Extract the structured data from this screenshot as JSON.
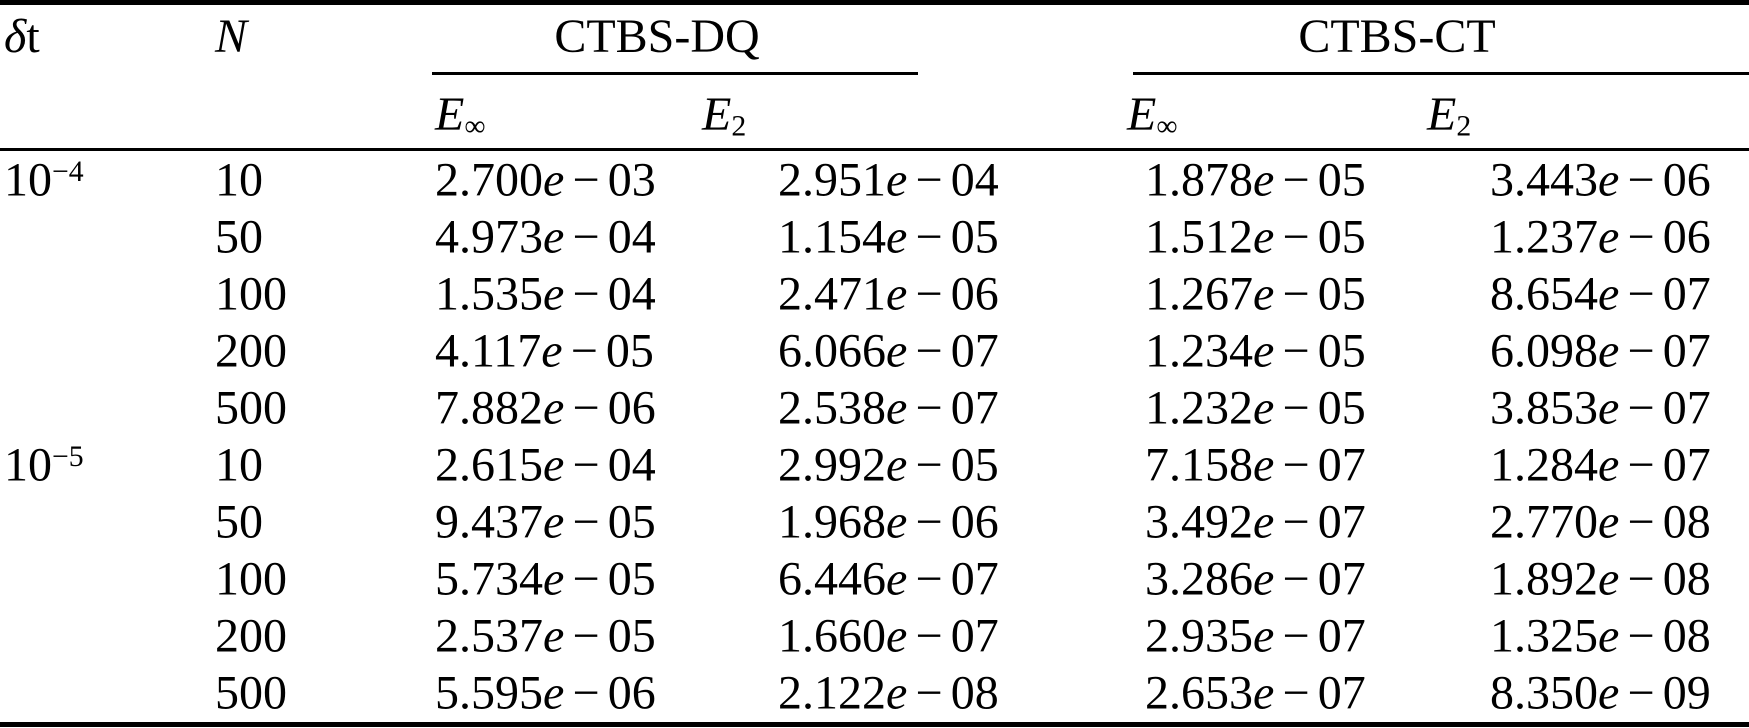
{
  "headers": {
    "dt_delta": "δ",
    "dt_t": "t",
    "n_label": "N",
    "groups": [
      {
        "label": "CTBS-DQ"
      },
      {
        "label": "CTBS-CT"
      }
    ],
    "subcols": [
      {
        "base": "E",
        "sub": "∞"
      },
      {
        "base": "E",
        "sub": "2"
      },
      {
        "base": "E",
        "sub": "∞"
      },
      {
        "base": "E",
        "sub": "2"
      }
    ]
  },
  "rows": [
    {
      "dt_base": "10",
      "dt_exp": "−4",
      "n": "10",
      "dq_einf": "2.700e-03",
      "dq_e2": "2.951e-04",
      "ct_einf": "1.878e-05",
      "ct_e2": "3.443e-06"
    },
    {
      "dt_base": "",
      "dt_exp": "",
      "n": "50",
      "dq_einf": "4.973e-04",
      "dq_e2": "1.154e-05",
      "ct_einf": "1.512e-05",
      "ct_e2": "1.237e-06"
    },
    {
      "dt_base": "",
      "dt_exp": "",
      "n": "100",
      "dq_einf": "1.535e-04",
      "dq_e2": "2.471e-06",
      "ct_einf": "1.267e-05",
      "ct_e2": "8.654e-07"
    },
    {
      "dt_base": "",
      "dt_exp": "",
      "n": "200",
      "dq_einf": "4.117e-05",
      "dq_e2": "6.066e-07",
      "ct_einf": "1.234e-05",
      "ct_e2": "6.098e-07"
    },
    {
      "dt_base": "",
      "dt_exp": "",
      "n": "500",
      "dq_einf": "7.882e-06",
      "dq_e2": "2.538e-07",
      "ct_einf": "1.232e-05",
      "ct_e2": "3.853e-07"
    },
    {
      "dt_base": "10",
      "dt_exp": "−5",
      "n": "10",
      "dq_einf": "2.615e-04",
      "dq_e2": "2.992e-05",
      "ct_einf": "7.158e-07",
      "ct_e2": "1.284e-07"
    },
    {
      "dt_base": "",
      "dt_exp": "",
      "n": "50",
      "dq_einf": "9.437e-05",
      "dq_e2": "1.968e-06",
      "ct_einf": "3.492e-07",
      "ct_e2": "2.770e-08"
    },
    {
      "dt_base": "",
      "dt_exp": "",
      "n": "100",
      "dq_einf": "5.734e-05",
      "dq_e2": "6.446e-07",
      "ct_einf": "3.286e-07",
      "ct_e2": "1.892e-08"
    },
    {
      "dt_base": "",
      "dt_exp": "",
      "n": "200",
      "dq_einf": "2.537e-05",
      "dq_e2": "1.660e-07",
      "ct_einf": "2.935e-07",
      "ct_e2": "1.325e-08"
    },
    {
      "dt_base": "",
      "dt_exp": "",
      "n": "500",
      "dq_einf": "5.595e-06",
      "dq_e2": "2.122e-08",
      "ct_einf": "2.653e-07",
      "ct_e2": "8.350e-09"
    }
  ]
}
